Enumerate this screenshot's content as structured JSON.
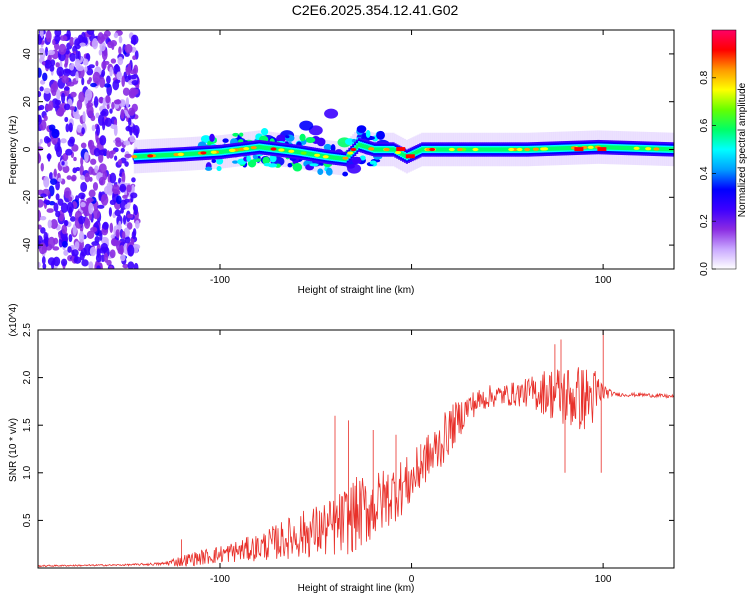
{
  "title": "C2E6.2025.354.12.41.G02",
  "chart_data": [
    {
      "type": "heatmap",
      "title": "C2E6.2025.354.12.41.G02",
      "xlabel": "Height of straight line (km)",
      "ylabel": "Frequency (Hz)",
      "xlim": [
        -195,
        137
      ],
      "ylim": [
        -50,
        50
      ],
      "x_ticks": [
        -100,
        0,
        100
      ],
      "x_tick_labels": [
        "-100",
        "",
        "100"
      ],
      "y_ticks": [
        -40,
        -20,
        0,
        20,
        40
      ],
      "y_tick_labels": [
        "-40",
        "-20",
        "0",
        "20",
        "40"
      ],
      "colorbar": {
        "label": "Normalized spectral amplitude",
        "range": [
          0,
          1
        ],
        "ticks": [
          0.0,
          0.2,
          0.4,
          0.6,
          0.8
        ],
        "tick_labels": [
          "0.0",
          "0.2",
          "0.4",
          "0.6",
          "0.8"
        ],
        "colors": [
          "#ffffff",
          "#c9a8ff",
          "#8a2be2",
          "#3c00ff",
          "#0000ff",
          "#00a0ff",
          "#00ffff",
          "#00ff66",
          "#66ff00",
          "#ffff00",
          "#ff9900",
          "#ff0000",
          "#ff0066"
        ]
      },
      "band": {
        "x_range": [
          -145,
          137
        ],
        "center_hz": [
          [
            -145,
            -3
          ],
          [
            -120,
            -2
          ],
          [
            -100,
            -1
          ],
          [
            -80,
            1
          ],
          [
            -60,
            -1
          ],
          [
            -45,
            -3
          ],
          [
            -35,
            -4
          ],
          [
            -28,
            2
          ],
          [
            -20,
            0
          ],
          [
            -10,
            0
          ],
          [
            -3,
            -3
          ],
          [
            5,
            0
          ],
          [
            20,
            0
          ],
          [
            60,
            0
          ],
          [
            97,
            1
          ],
          [
            137,
            0
          ]
        ],
        "halfwidth_hz": 3
      },
      "blobs": [
        {
          "x": -50,
          "y": 8,
          "a": 0.28
        },
        {
          "x": -55,
          "y": 10,
          "a": 0.3
        },
        {
          "x": -42,
          "y": 15,
          "a": 0.25
        },
        {
          "x": -65,
          "y": 6,
          "a": 0.3
        },
        {
          "x": -75,
          "y": 4,
          "a": 0.35
        },
        {
          "x": -90,
          "y": 3,
          "a": 0.3
        },
        {
          "x": -32,
          "y": -5,
          "a": 0.3
        },
        {
          "x": -30,
          "y": -8,
          "a": 0.25
        },
        {
          "x": -40,
          "y": -3,
          "a": 0.45
        },
        {
          "x": -60,
          "y": -3,
          "a": 0.5
        },
        {
          "x": -85,
          "y": 2,
          "a": 0.55
        },
        {
          "x": -105,
          "y": -1,
          "a": 0.5
        },
        {
          "x": -25,
          "y": 5,
          "a": 0.3
        },
        {
          "x": -35,
          "y": 3,
          "a": 0.55
        },
        {
          "x": -70,
          "y": -5,
          "a": 0.3
        },
        {
          "x": -50,
          "y": -5,
          "a": 0.35
        },
        {
          "x": -120,
          "y": -2,
          "a": 0.4
        },
        {
          "x": -15,
          "y": 2,
          "a": 0.3
        }
      ]
    },
    {
      "type": "line",
      "xlabel": "Height of straight line (km)",
      "ylabel": "SNR (10 * v/v)",
      "y_multiplier": "(x10^4)",
      "xlim": [
        -195,
        137
      ],
      "ylim": [
        0,
        2.5
      ],
      "x_ticks": [
        -100,
        0,
        100
      ],
      "x_tick_labels": [
        "-100",
        "0",
        "100"
      ],
      "y_ticks": [
        0.5,
        1.0,
        1.5,
        2.0,
        2.5
      ],
      "y_tick_labels": [
        "0.5",
        "1.0",
        "1.5",
        "2.0",
        "2.5"
      ],
      "color": "#e8302a",
      "envelope": {
        "x": [
          -195,
          -150,
          -130,
          -120,
          -100,
          -80,
          -60,
          -40,
          -30,
          -20,
          -10,
          0,
          10,
          20,
          30,
          40,
          50,
          60,
          70,
          80,
          90,
          97,
          100,
          105,
          110,
          120,
          137
        ],
        "base": [
          0.02,
          0.03,
          0.04,
          0.06,
          0.12,
          0.18,
          0.28,
          0.35,
          0.45,
          0.55,
          0.7,
          0.85,
          1.15,
          1.45,
          1.7,
          1.8,
          1.82,
          1.84,
          1.85,
          1.8,
          1.78,
          1.8,
          1.85,
          1.83,
          1.82,
          1.82,
          1.8
        ],
        "noise": [
          0.01,
          0.01,
          0.02,
          0.08,
          0.12,
          0.18,
          0.3,
          0.4,
          0.5,
          0.45,
          0.4,
          0.35,
          0.3,
          0.25,
          0.15,
          0.12,
          0.12,
          0.15,
          0.25,
          0.35,
          0.35,
          0.3,
          0.1,
          0.02,
          0.02,
          0.02,
          0.02
        ]
      },
      "spikes": [
        {
          "x": -120,
          "y": 0.3
        },
        {
          "x": -40,
          "y": 1.6
        },
        {
          "x": -33,
          "y": 1.55
        },
        {
          "x": -20,
          "y": 1.45
        },
        {
          "x": -8,
          "y": 1.4
        },
        {
          "x": 5,
          "y": 1.3
        },
        {
          "x": 78,
          "y": 2.4
        },
        {
          "x": 75,
          "y": 2.35
        },
        {
          "x": 80,
          "y": 1.0
        },
        {
          "x": 100,
          "y": 2.5
        },
        {
          "x": 99,
          "y": 1.0
        }
      ]
    }
  ]
}
